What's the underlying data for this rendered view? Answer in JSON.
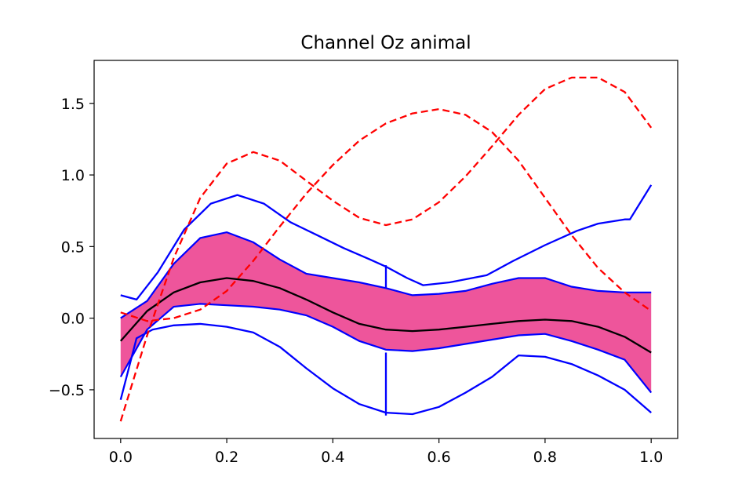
{
  "chart_data": {
    "type": "line",
    "title": "Channel Oz animal",
    "xlabel": "",
    "ylabel": "",
    "xlim": [
      -0.05,
      1.05
    ],
    "ylim": [
      -0.84,
      1.8
    ],
    "grid": false,
    "x_ticks": [
      {
        "value": 0.0,
        "label": "0.0"
      },
      {
        "value": 0.2,
        "label": "0.2"
      },
      {
        "value": 0.4,
        "label": "0.4"
      },
      {
        "value": 0.6,
        "label": "0.6"
      },
      {
        "value": 0.8,
        "label": "0.8"
      },
      {
        "value": 1.0,
        "label": "1.0"
      }
    ],
    "y_ticks": [
      {
        "value": -0.5,
        "label": "−0.5"
      },
      {
        "value": 0.0,
        "label": "0.0"
      },
      {
        "value": 0.5,
        "label": "0.5"
      },
      {
        "value": 1.0,
        "label": "1.0"
      },
      {
        "value": 1.5,
        "label": "1.5"
      }
    ],
    "band": {
      "color": "#ee559b",
      "x": [
        0,
        0.05,
        0.1,
        0.15,
        0.2,
        0.25,
        0.3,
        0.35,
        0.4,
        0.45,
        0.5,
        0.55,
        0.6,
        0.65,
        0.7,
        0.75,
        0.8,
        0.85,
        0.9,
        0.95,
        1.0
      ],
      "upper": [
        0.0,
        0.12,
        0.38,
        0.56,
        0.6,
        0.53,
        0.41,
        0.31,
        0.28,
        0.25,
        0.21,
        0.16,
        0.17,
        0.19,
        0.24,
        0.28,
        0.28,
        0.22,
        0.19,
        0.18,
        0.18
      ],
      "lower": [
        -0.41,
        -0.08,
        0.08,
        0.1,
        0.09,
        0.08,
        0.06,
        0.02,
        -0.06,
        -0.16,
        -0.22,
        -0.23,
        -0.21,
        -0.18,
        -0.15,
        -0.12,
        -0.11,
        -0.16,
        -0.22,
        -0.29,
        -0.52
      ]
    },
    "series": [
      {
        "color": "#000000",
        "style": "solid",
        "x": [
          0,
          0.05,
          0.1,
          0.15,
          0.2,
          0.25,
          0.3,
          0.35,
          0.4,
          0.45,
          0.5,
          0.55,
          0.6,
          0.65,
          0.7,
          0.75,
          0.8,
          0.85,
          0.9,
          0.95,
          1.0
        ],
        "y": [
          -0.16,
          0.05,
          0.18,
          0.25,
          0.28,
          0.26,
          0.21,
          0.13,
          0.04,
          -0.04,
          -0.08,
          -0.09,
          -0.08,
          -0.06,
          -0.04,
          -0.02,
          -0.01,
          -0.02,
          -0.06,
          -0.13,
          -0.24
        ]
      },
      {
        "color": "#0000ff",
        "style": "solid",
        "x": [
          0,
          0.03,
          0.07,
          0.12,
          0.17,
          0.22,
          0.27,
          0.32,
          0.37,
          0.42,
          0.47,
          0.5,
          0.54,
          0.57,
          0.62,
          0.69,
          0.74,
          0.8,
          0.86,
          0.9,
          0.95,
          0.96,
          1.0
        ],
        "y": [
          0.16,
          0.13,
          0.32,
          0.62,
          0.8,
          0.86,
          0.8,
          0.67,
          0.58,
          0.49,
          0.41,
          0.36,
          0.28,
          0.23,
          0.25,
          0.3,
          0.4,
          0.51,
          0.61,
          0.66,
          0.69,
          0.69,
          0.93
        ]
      },
      {
        "color": "#0000ff",
        "style": "solid",
        "x": [
          0,
          0.03,
          0.06,
          0.1,
          0.15,
          0.2,
          0.25,
          0.3,
          0.35,
          0.4,
          0.45,
          0.5,
          0.55,
          0.6,
          0.65,
          0.7,
          0.75,
          0.8,
          0.85,
          0.9,
          0.95,
          1.0
        ],
        "y": [
          -0.57,
          -0.14,
          -0.08,
          -0.05,
          -0.04,
          -0.06,
          -0.1,
          -0.2,
          -0.35,
          -0.49,
          -0.6,
          -0.66,
          -0.67,
          -0.62,
          -0.52,
          -0.41,
          -0.26,
          -0.27,
          -0.32,
          -0.4,
          -0.5,
          -0.66
        ]
      },
      {
        "color": "#0000ff",
        "style": "solid",
        "x": [
          0.5,
          0.5
        ],
        "y": [
          -0.68,
          -0.24
        ]
      },
      {
        "color": "#0000ff",
        "style": "solid",
        "x": [
          0.5,
          0.5
        ],
        "y": [
          0.21,
          0.37
        ]
      },
      {
        "color": "#ff0000",
        "style": "dashed",
        "x": [
          0,
          0.05,
          0.1,
          0.15,
          0.2,
          0.25,
          0.3,
          0.35,
          0.4,
          0.45,
          0.5,
          0.55,
          0.6,
          0.65,
          0.7,
          0.75,
          0.8,
          0.85,
          0.9,
          0.95,
          1.0
        ],
        "y": [
          -0.72,
          -0.12,
          0.42,
          0.84,
          1.08,
          1.16,
          1.1,
          0.96,
          0.82,
          0.7,
          0.65,
          0.69,
          0.81,
          0.99,
          1.2,
          1.42,
          1.6,
          1.68,
          1.68,
          1.58,
          1.33
        ]
      },
      {
        "color": "#ff0000",
        "style": "dashed",
        "x": [
          0,
          0.05,
          0.1,
          0.15,
          0.2,
          0.25,
          0.3,
          0.35,
          0.4,
          0.45,
          0.5,
          0.55,
          0.6,
          0.65,
          0.7,
          0.75,
          0.8,
          0.85,
          0.9,
          0.95,
          1.0
        ],
        "y": [
          0.04,
          -0.02,
          0.0,
          0.06,
          0.19,
          0.4,
          0.64,
          0.87,
          1.07,
          1.24,
          1.36,
          1.43,
          1.46,
          1.42,
          1.3,
          1.1,
          0.84,
          0.58,
          0.35,
          0.18,
          0.05
        ]
      }
    ]
  }
}
